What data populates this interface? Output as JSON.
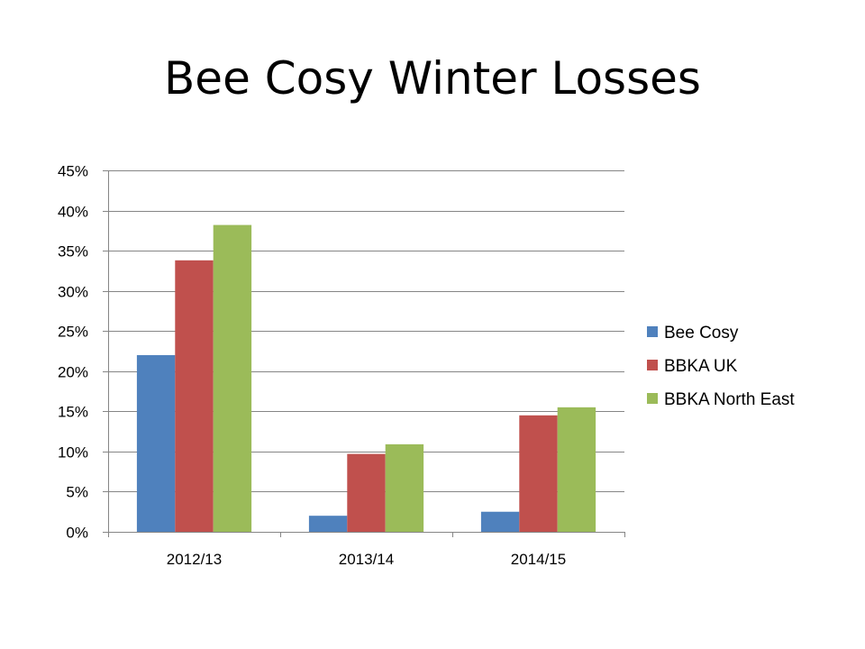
{
  "chart_data": {
    "type": "bar",
    "title": "Bee Cosy Winter Losses",
    "categories": [
      "2012/13",
      "2013/14",
      "2014/15"
    ],
    "series": [
      {
        "name": "Bee Cosy",
        "values": [
          0.22,
          0.02,
          0.025
        ],
        "color": "#4F81BD"
      },
      {
        "name": "BBKA UK",
        "values": [
          0.338,
          0.097,
          0.145
        ],
        "color": "#C0504D"
      },
      {
        "name": "BBKA North East",
        "values": [
          0.382,
          0.109,
          0.155
        ],
        "color": "#9BBB59"
      }
    ],
    "ylim": [
      0,
      0.45
    ],
    "yticks": [
      {
        "value": 0,
        "label": "0%"
      },
      {
        "value": 0.05,
        "label": "5%"
      },
      {
        "value": 0.1,
        "label": "10%"
      },
      {
        "value": 0.15,
        "label": "15%"
      },
      {
        "value": 0.2,
        "label": "20%"
      },
      {
        "value": 0.25,
        "label": "25%"
      },
      {
        "value": 0.3,
        "label": "30%"
      },
      {
        "value": 0.35,
        "label": "35%"
      },
      {
        "value": 0.4,
        "label": "40%"
      },
      {
        "value": 0.45,
        "label": "45%"
      }
    ],
    "grid": true,
    "legend_position": "right",
    "gridline_color": "#868686",
    "axis_color": "#868686"
  }
}
